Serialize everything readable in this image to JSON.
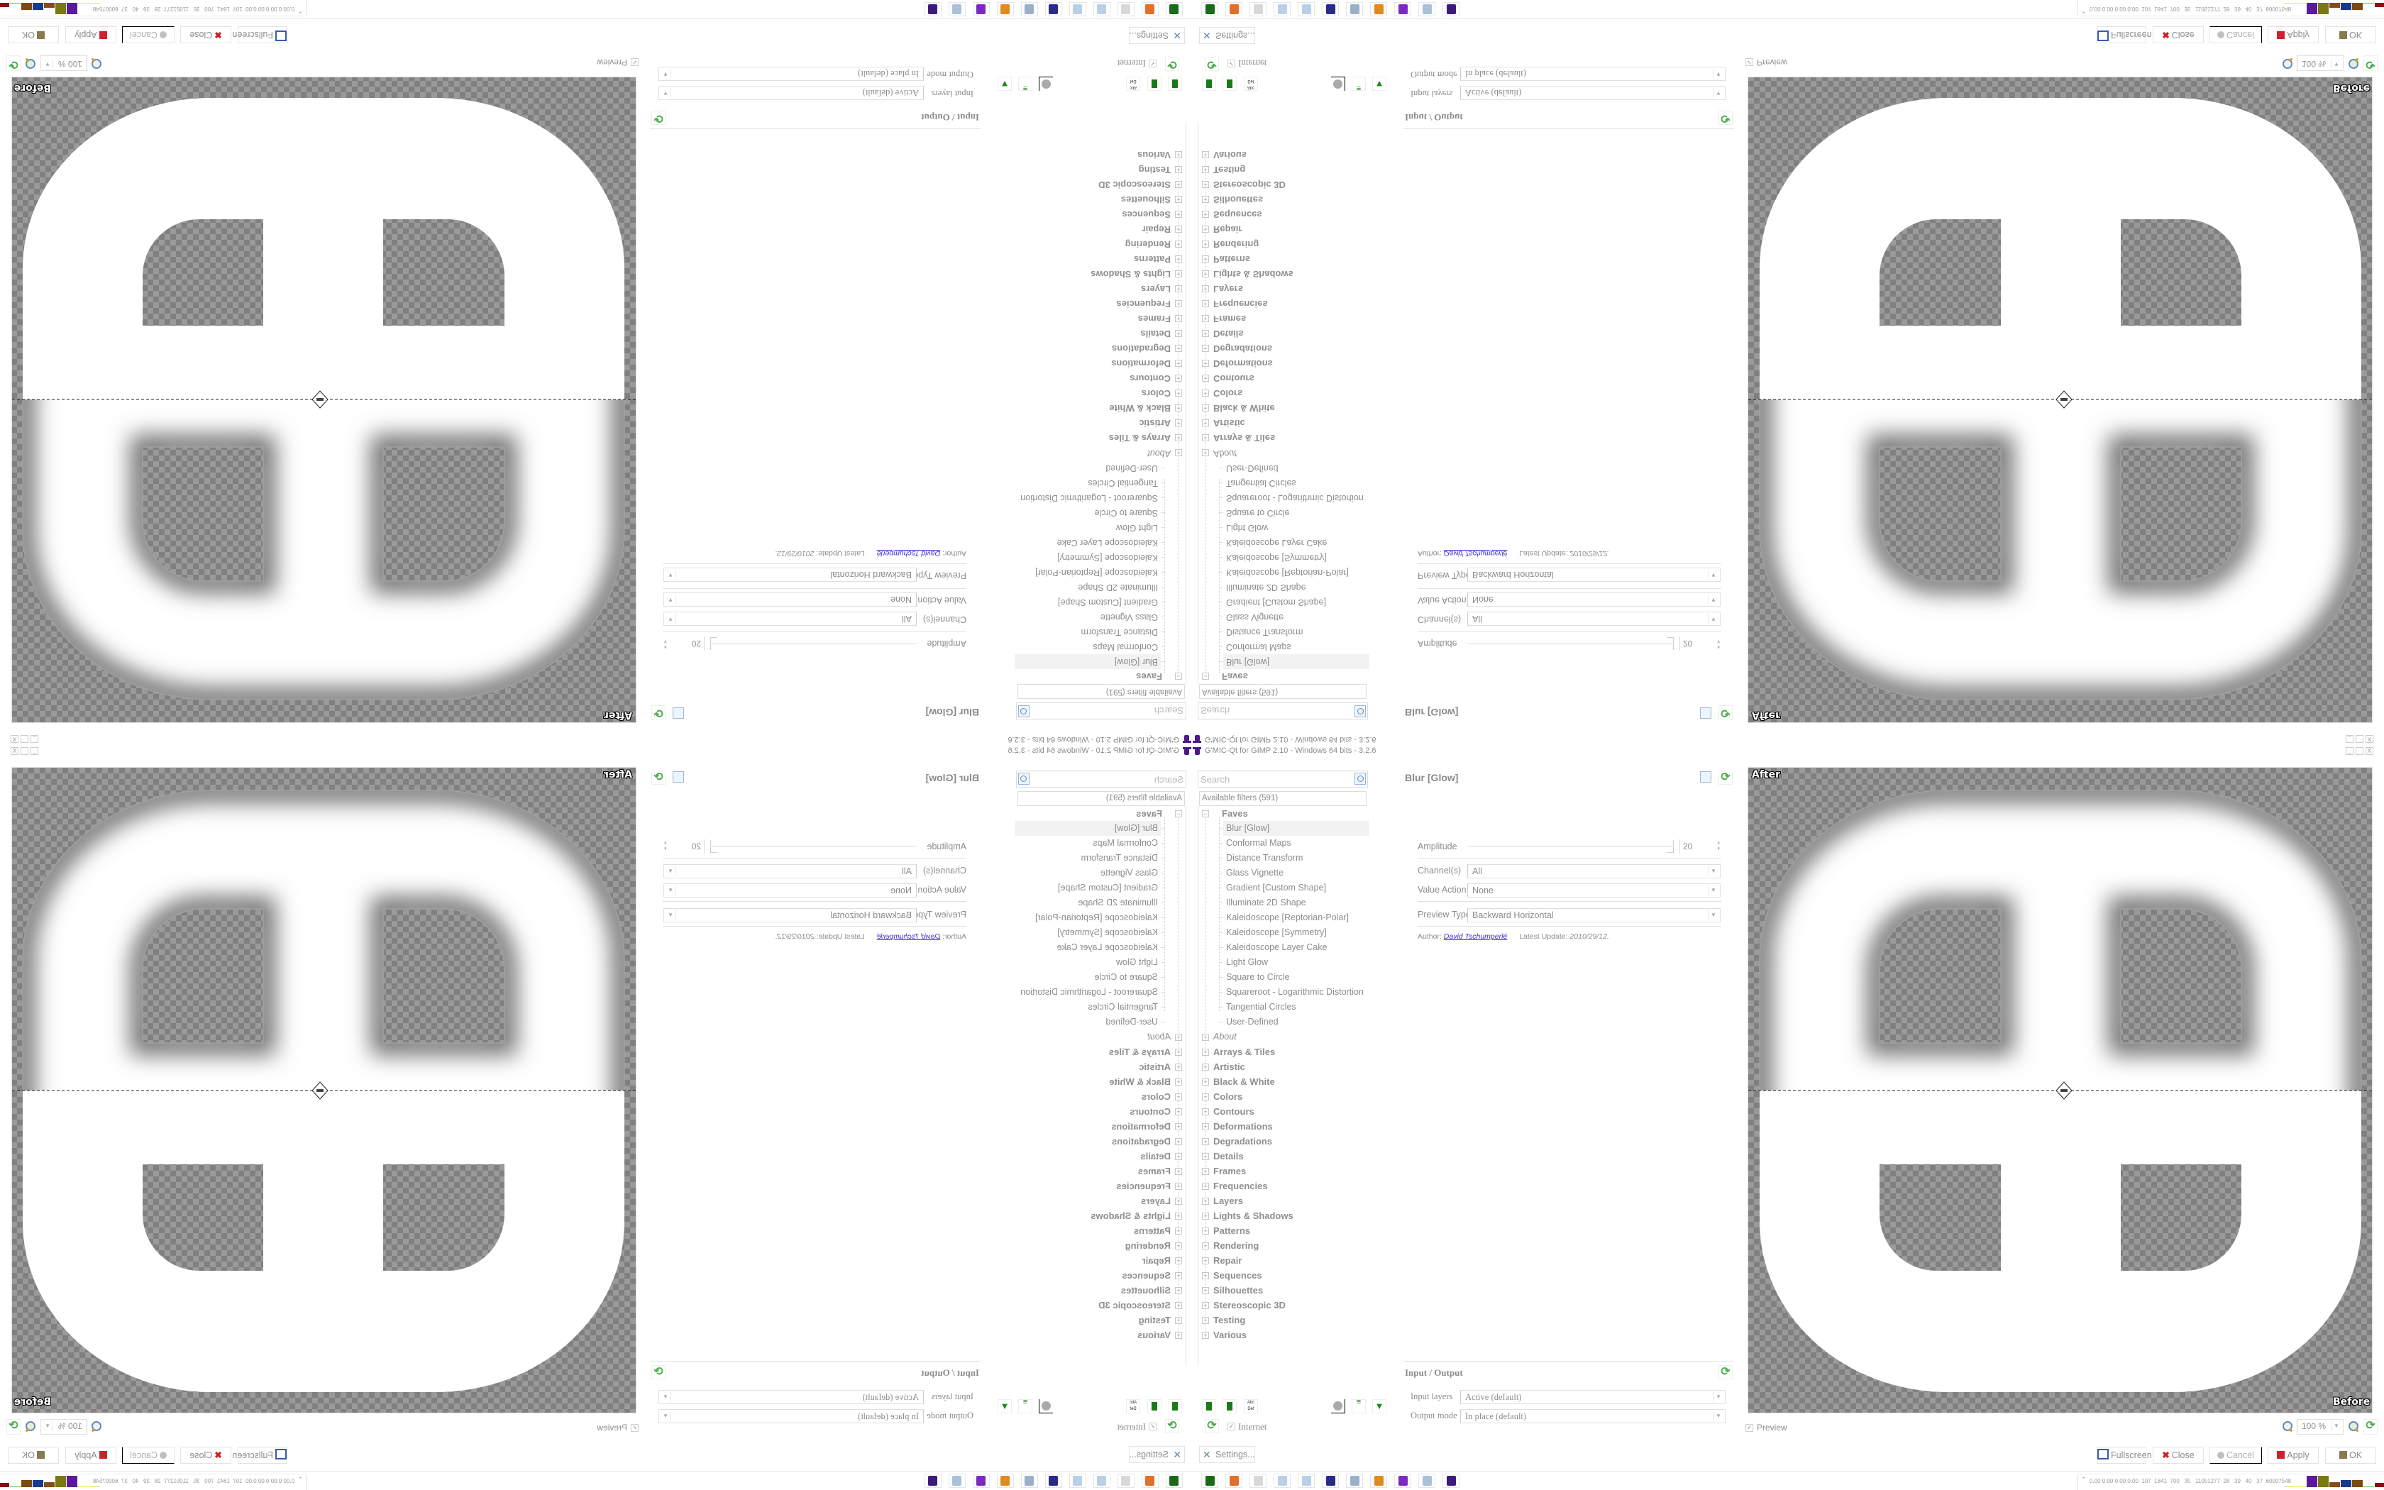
{
  "window": {
    "title": "G'MIC-Qt for GIMP 2.10 - Windows 64 bits - 3.2.6",
    "controls": [
      "minimize-icon",
      "restore-icon",
      "close-icon"
    ]
  },
  "filters": {
    "search_placeholder": "Search",
    "available_label": "Available filters (591)",
    "faves": {
      "label": "Faves",
      "expanded": true,
      "items": [
        "Blur [Glow]",
        "Conformal Maps",
        "Distance Transform",
        "Glass Vignette",
        "Gradient [Custom Shape]",
        "Illuminate 2D Shape",
        "Kaleidoscope [Reptorian-Polar]",
        "Kaleidoscope [Symmetry]",
        "Kaleidoscope Layer Cake",
        "Light Glow",
        "Square to Circle",
        "Squareroot - Logarithmic Distortion",
        "Tangential Circles",
        "User-Defined"
      ],
      "selected": "Blur [Glow]"
    },
    "about_label": "About",
    "categories": [
      "Arrays & Tiles",
      "Artistic",
      "Black & White",
      "Colors",
      "Contours",
      "Deformations",
      "Degradations",
      "Details",
      "Frames",
      "Frequencies",
      "Layers",
      "Lights & Shadows",
      "Patterns",
      "Rendering",
      "Repair",
      "Sequences",
      "Silhouettes",
      "Stereoscopic 3D",
      "Testing",
      "Various"
    ],
    "internet_label": "Internet",
    "internet_checked": true,
    "settings_label": "Settings..."
  },
  "params": {
    "filter_title": "Blur [Glow]",
    "amplitude": {
      "label": "Amplitude",
      "value": "20"
    },
    "channels": {
      "label": "Channel(s)",
      "value": "All"
    },
    "value_action": {
      "label": "Value Action",
      "value": "None"
    },
    "preview_type": {
      "label": "Preview Type",
      "value": "Backward Horizontal"
    },
    "author_label": "Author:",
    "author_name": "David Tschumperlé",
    "update_label": "Latest Update:",
    "update_value": "2010/29/12."
  },
  "io": {
    "title": "Input / Output",
    "input_layers": {
      "label": "Input layers",
      "value": "Active (default)"
    },
    "output_mode": {
      "label": "Output mode",
      "value": "In place (default)"
    }
  },
  "preview": {
    "after_label": "After",
    "before_label": "Before",
    "preview_label": "Preview",
    "preview_checked": true,
    "zoom": "100 %"
  },
  "buttons": {
    "fullscreen": "Fullscreen",
    "close": "Close",
    "cancel": "Cancel",
    "apply": "Apply",
    "ok": "OK"
  },
  "taskbar": {
    "apps": [
      "terminal-icon",
      "firefox-icon",
      "app-disabled-icon",
      "notepad-icon",
      "notepad-icon",
      "floppy-64-icon",
      "scroll-icon",
      "blender-icon",
      "purple-face-icon",
      "calculator-icon",
      "gmic-wizard-icon"
    ],
    "tray_text": "0.00 0.00 0.00 0.00  107  1841  700   35   11051277  28   39   40   37  60007548",
    "tray_colors": [
      "#e8e84a",
      "#e8e84a",
      "#5a1a9a",
      "#7a7a10",
      "#8a4a10",
      "#1a3a8a",
      "#7a4a10",
      "#4ad04a",
      "#8a1010"
    ]
  },
  "colors": {
    "checker_dark": "#808080",
    "checker_light": "#9a9a9a",
    "link": "#3a2ad0",
    "refresh_green": "#4cae4c"
  }
}
